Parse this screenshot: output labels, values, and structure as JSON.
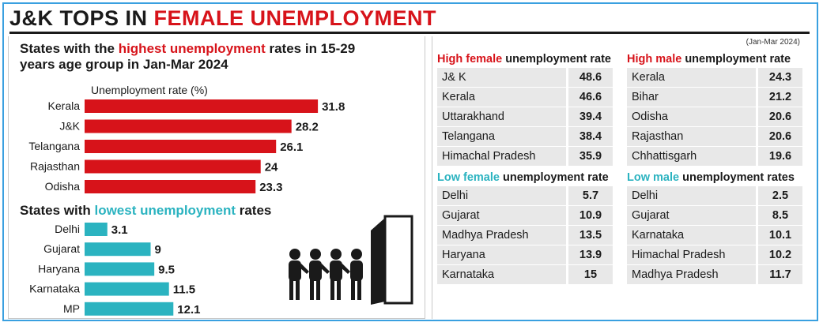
{
  "headline": {
    "part1": "J&K TOPS IN ",
    "part2": "FEMALE UNEMPLOYMENT"
  },
  "colors": {
    "red": "#d7131a",
    "teal": "#2bb3c0",
    "frame": "#3aa0e0"
  },
  "chart_data": [
    {
      "type": "bar",
      "orientation": "horizontal",
      "title_parts": [
        "States with the ",
        "highest unemployment",
        " rates in 15-29 years age group in Jan-Mar 2024"
      ],
      "xlabel": "Unemployment rate (%)",
      "categories": [
        "Kerala",
        "J&K",
        "Telangana",
        "Rajasthan",
        "Odisha"
      ],
      "values": [
        31.8,
        28.2,
        26.1,
        24,
        23.3
      ],
      "value_labels": [
        "31.8",
        "28.2",
        "26.1",
        "24",
        "23.3"
      ],
      "color": "#d7131a",
      "grid": false
    },
    {
      "type": "bar",
      "orientation": "horizontal",
      "title_parts": [
        "States with ",
        "lowest unemployment",
        " rates"
      ],
      "categories": [
        "Delhi",
        "Gujarat",
        "Haryana",
        "Karnataka",
        "MP"
      ],
      "values": [
        3.1,
        9,
        9.5,
        11.5,
        12.1
      ],
      "value_labels": [
        "3.1",
        "9",
        "9.5",
        "11.5",
        "12.1"
      ],
      "color": "#2bb3c0",
      "grid": false
    }
  ],
  "tables": {
    "note": "(Jan-Mar 2024)",
    "high_female": {
      "title_colored": "High female",
      "title_rest": " unemployment rate",
      "rows": [
        {
          "name": "J& K",
          "value": "48.6"
        },
        {
          "name": "Kerala",
          "value": "46.6"
        },
        {
          "name": "Uttarakhand",
          "value": "39.4"
        },
        {
          "name": "Telangana",
          "value": "38.4"
        },
        {
          "name": "Himachal Pradesh",
          "value": "35.9"
        }
      ]
    },
    "high_male": {
      "title_colored": "High male",
      "title_rest": " unemployment rate",
      "rows": [
        {
          "name": "Kerala",
          "value": "24.3"
        },
        {
          "name": "Bihar",
          "value": "21.2"
        },
        {
          "name": "Odisha",
          "value": "20.6"
        },
        {
          "name": "Rajasthan",
          "value": "20.6"
        },
        {
          "name": "Chhattisgarh",
          "value": "19.6"
        }
      ]
    },
    "low_female": {
      "title_colored": "Low female",
      "title_rest": " unemployment rate",
      "rows": [
        {
          "name": "Delhi",
          "value": "5.7"
        },
        {
          "name": "Gujarat",
          "value": "10.9"
        },
        {
          "name": "Madhya Pradesh",
          "value": "13.5"
        },
        {
          "name": "Haryana",
          "value": "13.9"
        },
        {
          "name": "Karnataka",
          "value": "15"
        }
      ]
    },
    "low_male": {
      "title_colored": "Low male",
      "title_rest": " unemployment rates",
      "rows": [
        {
          "name": "Delhi",
          "value": "2.5"
        },
        {
          "name": "Gujarat",
          "value": "8.5"
        },
        {
          "name": "Karnataka",
          "value": "10.1"
        },
        {
          "name": "Himachal Pradesh",
          "value": "10.2"
        },
        {
          "name": "Madhya Pradesh",
          "value": "11.7"
        }
      ]
    }
  }
}
